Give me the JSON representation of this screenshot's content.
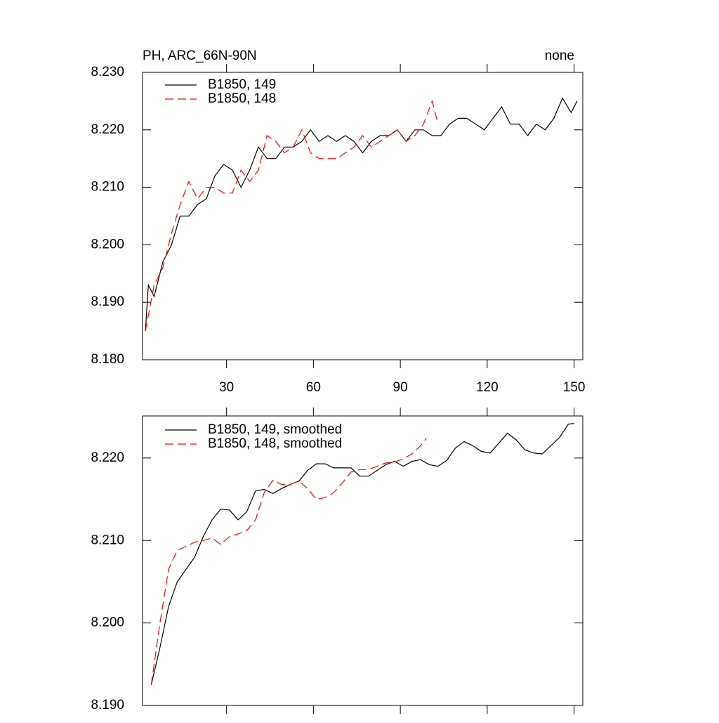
{
  "chart_data": [
    {
      "type": "line",
      "title": "PH, ARC_66N-90N",
      "subtitle": "none",
      "xlim": [
        1,
        153
      ],
      "xticks": [
        30,
        60,
        90,
        120,
        150
      ],
      "ylim": [
        8.18,
        8.23
      ],
      "yticks": [
        {
          "value": 8.18,
          "label": "8.180"
        },
        {
          "value": 8.19,
          "label": "8.190"
        },
        {
          "value": 8.2,
          "label": "8.200"
        },
        {
          "value": 8.21,
          "label": "8.210"
        },
        {
          "value": 8.22,
          "label": "8.220"
        },
        {
          "value": 8.23,
          "label": "8.230"
        }
      ],
      "series": [
        {
          "name": "B1850, 149",
          "color": "#000000",
          "dash": false,
          "x": [
            2,
            3,
            5,
            8,
            11,
            14,
            17,
            20,
            23,
            26,
            29,
            32,
            35,
            38,
            41,
            44,
            47,
            50,
            53,
            56,
            59,
            62,
            65,
            68,
            71,
            74,
            77,
            80,
            83,
            86,
            89,
            92,
            95,
            98,
            101,
            104,
            107,
            110,
            113,
            116,
            119,
            122,
            125,
            128,
            131,
            134,
            137,
            140,
            143,
            146,
            149,
            151
          ],
          "values": [
            8.185,
            8.193,
            8.191,
            8.197,
            8.2,
            8.205,
            8.205,
            8.207,
            8.208,
            8.212,
            8.214,
            8.213,
            8.21,
            8.213,
            8.217,
            8.215,
            8.215,
            8.217,
            8.217,
            8.218,
            8.22,
            8.218,
            8.219,
            8.218,
            8.219,
            8.218,
            8.216,
            8.218,
            8.219,
            8.219,
            8.22,
            8.218,
            8.22,
            8.22,
            8.219,
            8.219,
            8.221,
            8.222,
            8.222,
            8.221,
            8.22,
            8.222,
            8.224,
            8.221,
            8.221,
            8.219,
            8.221,
            8.22,
            8.222,
            8.2255,
            8.223,
            8.225
          ]
        },
        {
          "name": "B1850, 148",
          "color": "#ff0000",
          "dash": true,
          "x": [
            2,
            5,
            8,
            11,
            14,
            17,
            20,
            23,
            26,
            29,
            32,
            35,
            38,
            41,
            44,
            47,
            50,
            53,
            56,
            59,
            62,
            65,
            68,
            71,
            74,
            77,
            80,
            83,
            86,
            89,
            92,
            95,
            98,
            101,
            103
          ],
          "values": [
            8.185,
            8.193,
            8.196,
            8.202,
            8.207,
            8.211,
            8.208,
            8.21,
            8.21,
            8.209,
            8.209,
            8.213,
            8.211,
            8.213,
            8.219,
            8.218,
            8.216,
            8.217,
            8.22,
            8.216,
            8.215,
            8.215,
            8.215,
            8.216,
            8.217,
            8.219,
            8.217,
            8.218,
            8.219,
            8.22,
            8.218,
            8.219,
            8.221,
            8.225,
            8.221
          ]
        }
      ]
    },
    {
      "type": "line",
      "xlim": [
        1,
        153
      ],
      "xticks": [
        30,
        60,
        90,
        120,
        150
      ],
      "ylim": [
        8.19,
        8.2251
      ],
      "yticks": [
        {
          "value": 8.19,
          "label": "8.190"
        },
        {
          "value": 8.2,
          "label": "8.200"
        },
        {
          "value": 8.21,
          "label": "8.210"
        },
        {
          "value": 8.22,
          "label": "8.220"
        }
      ],
      "series": [
        {
          "name": "B1850, 149, smoothed",
          "color": "#000000",
          "dash": false,
          "x": [
            4,
            7,
            10,
            13,
            16,
            19,
            22,
            25,
            28,
            31,
            34,
            37,
            40,
            43,
            46,
            49,
            52,
            55,
            58,
            61,
            64,
            67,
            70,
            73,
            76,
            79,
            82,
            85,
            88,
            91,
            94,
            97,
            100,
            103,
            106,
            109,
            112,
            115,
            118,
            121,
            124,
            127,
            130,
            133,
            136,
            139,
            142,
            145,
            148,
            150
          ],
          "values": [
            8.1925,
            8.197,
            8.202,
            8.205,
            8.2065,
            8.208,
            8.2105,
            8.2125,
            8.2138,
            8.2137,
            8.2125,
            8.2135,
            8.216,
            8.2162,
            8.2157,
            8.2163,
            8.2168,
            8.2172,
            8.2185,
            8.2193,
            8.2193,
            8.2188,
            8.2188,
            8.2188,
            8.2178,
            8.2178,
            8.2185,
            8.2192,
            8.2196,
            8.219,
            8.2196,
            8.2198,
            8.2192,
            8.219,
            8.2197,
            8.2212,
            8.222,
            8.2215,
            8.2208,
            8.2206,
            8.2218,
            8.223,
            8.2222,
            8.221,
            8.2206,
            8.2205,
            8.2215,
            8.2225,
            8.2241,
            8.2242
          ]
        },
        {
          "name": "B1850, 148, smoothed",
          "color": "#ff0000",
          "dash": true,
          "x": [
            4,
            7,
            10,
            13,
            16,
            19,
            22,
            25,
            28,
            31,
            34,
            37,
            40,
            43,
            46,
            49,
            52,
            55,
            58,
            61,
            64,
            67,
            70,
            73,
            76,
            79,
            82,
            85,
            88,
            91,
            94,
            97,
            99
          ],
          "values": [
            8.1925,
            8.2,
            8.2065,
            8.2088,
            8.2093,
            8.2098,
            8.21,
            8.2103,
            8.2095,
            8.2105,
            8.2108,
            8.2112,
            8.2125,
            8.2158,
            8.2173,
            8.2168,
            8.2168,
            8.2172,
            8.2163,
            8.215,
            8.2152,
            8.2158,
            8.217,
            8.2183,
            8.2186,
            8.2186,
            8.219,
            8.2194,
            8.2195,
            8.2199,
            8.2205,
            8.2215,
            8.2224
          ]
        }
      ]
    }
  ]
}
